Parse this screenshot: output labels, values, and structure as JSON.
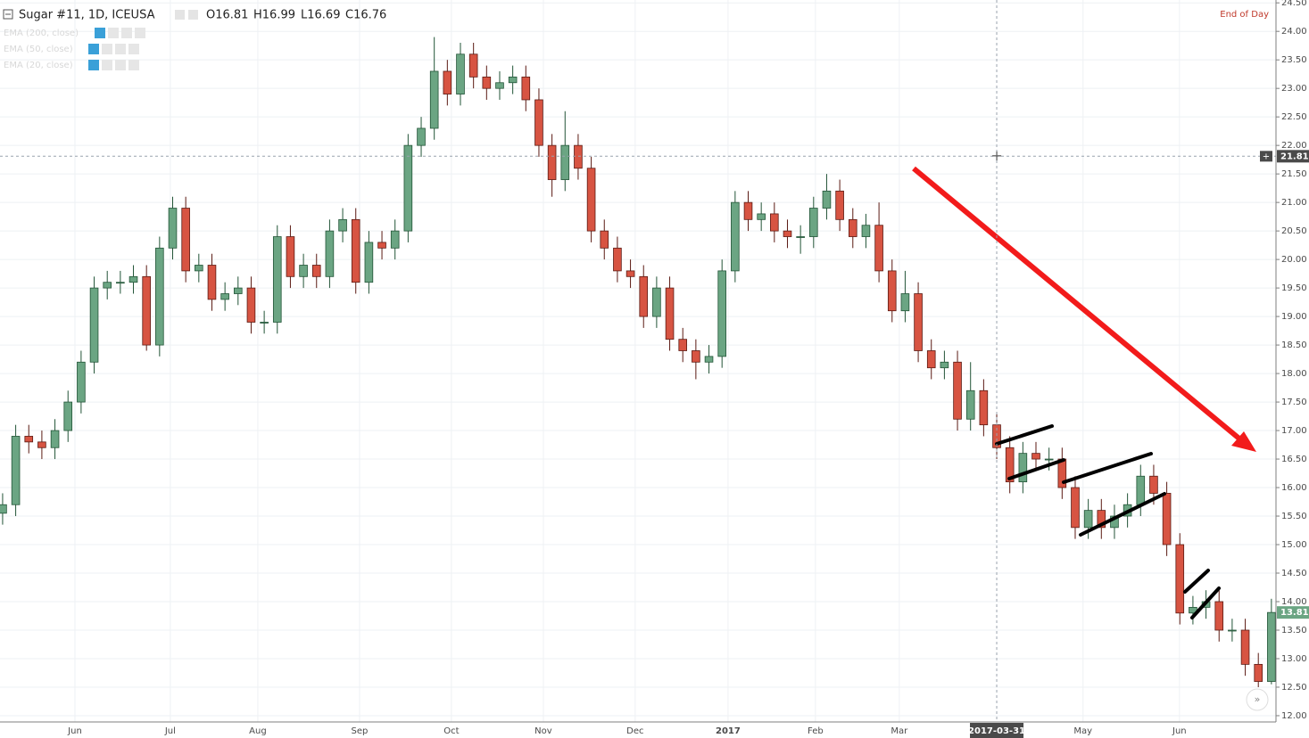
{
  "chart_data": {
    "type": "candlestick",
    "title": "Sugar #11, 1D, ICEUSA",
    "ohlc_labels": [
      "O16.81",
      "H16.99",
      "L16.69",
      "C16.76"
    ],
    "indicators": [
      "EMA (200, close)",
      "EMA (50, close)",
      "EMA (20, close)"
    ],
    "note": "End of Day",
    "up_color": "#6ba583",
    "up_border": "#225437",
    "down_color": "#d75442",
    "down_border": "#5b1a13",
    "open": [
      15.55,
      15.7,
      16.9,
      16.8,
      16.7,
      17.0,
      17.5,
      18.2,
      19.5,
      19.6,
      19.6,
      19.7,
      18.5,
      20.2,
      20.9,
      19.8,
      19.9,
      19.3,
      19.4,
      19.5,
      18.9,
      18.9,
      20.4,
      19.7,
      19.9,
      19.7,
      20.5,
      20.7,
      19.6,
      20.3,
      20.2,
      20.5,
      22.0,
      22.3,
      23.3,
      22.9,
      23.6,
      23.2,
      23.0,
      23.1,
      23.2,
      22.8,
      22.0,
      21.4,
      22.0,
      21.6,
      20.5,
      20.2,
      19.8,
      19.7,
      19.0,
      19.5,
      18.6,
      18.4,
      18.2,
      18.3,
      19.8,
      21.0,
      20.7,
      20.8,
      20.5,
      20.4,
      20.4,
      20.9,
      21.2,
      20.7,
      20.4,
      20.6,
      19.8,
      19.1,
      19.4,
      18.4,
      18.1,
      18.2,
      17.2,
      17.7,
      17.1,
      16.7,
      16.1,
      16.6,
      16.5,
      16.5,
      16.0,
      15.3,
      15.6,
      15.3,
      15.5,
      15.7,
      16.2,
      15.9,
      15.0,
      13.8,
      13.9,
      14.0,
      13.5,
      13.5,
      12.9,
      12.6
    ],
    "high": [
      15.9,
      17.1,
      17.1,
      17.0,
      17.2,
      17.7,
      18.4,
      19.7,
      19.8,
      19.8,
      19.9,
      19.9,
      20.4,
      21.1,
      21.1,
      20.1,
      20.1,
      19.6,
      19.7,
      19.7,
      19.1,
      20.6,
      20.6,
      20.1,
      20.1,
      20.7,
      20.9,
      20.9,
      20.5,
      20.5,
      20.7,
      22.2,
      22.5,
      23.9,
      23.5,
      23.8,
      23.8,
      23.4,
      23.3,
      23.4,
      23.4,
      23.0,
      22.2,
      22.6,
      22.2,
      21.8,
      20.7,
      20.4,
      20.0,
      19.9,
      19.7,
      19.7,
      18.8,
      18.6,
      18.5,
      20.0,
      21.2,
      21.2,
      21.0,
      21.0,
      20.7,
      20.6,
      21.1,
      21.5,
      21.4,
      20.9,
      20.8,
      21.0,
      20.0,
      19.8,
      19.6,
      18.6,
      18.4,
      18.4,
      18.2,
      17.9,
      17.3,
      16.9,
      16.8,
      16.8,
      16.7,
      16.7,
      16.2,
      15.8,
      15.8,
      15.7,
      15.9,
      16.4,
      16.4,
      16.1,
      15.2,
      14.1,
      14.2,
      14.2,
      13.7,
      13.7,
      13.1,
      14.05
    ],
    "low": [
      15.35,
      15.5,
      16.6,
      16.5,
      16.5,
      16.8,
      17.3,
      18.0,
      19.3,
      19.4,
      19.4,
      18.4,
      18.3,
      20.0,
      19.6,
      19.6,
      19.1,
      19.1,
      19.2,
      18.7,
      18.7,
      18.7,
      19.5,
      19.5,
      19.5,
      19.5,
      20.3,
      19.4,
      19.4,
      20.0,
      20.0,
      20.3,
      21.8,
      22.1,
      22.7,
      22.7,
      23.0,
      22.8,
      22.8,
      22.9,
      22.6,
      21.8,
      21.1,
      21.2,
      21.4,
      20.3,
      20.0,
      19.6,
      19.5,
      18.8,
      18.8,
      18.4,
      18.2,
      17.9,
      18.0,
      18.1,
      19.6,
      20.5,
      20.5,
      20.3,
      20.2,
      20.1,
      20.2,
      20.7,
      20.5,
      20.2,
      20.2,
      19.6,
      18.9,
      18.9,
      18.2,
      17.9,
      17.9,
      17.0,
      17.0,
      16.9,
      16.5,
      15.9,
      15.9,
      16.3,
      16.3,
      15.8,
      15.1,
      15.1,
      15.1,
      15.1,
      15.3,
      15.5,
      15.7,
      14.8,
      13.6,
      13.6,
      13.7,
      13.3,
      13.3,
      12.7,
      12.5,
      12.55
    ],
    "close": [
      15.7,
      16.9,
      16.8,
      16.7,
      17.0,
      17.5,
      18.2,
      19.5,
      19.6,
      19.6,
      19.7,
      18.5,
      20.2,
      20.9,
      19.8,
      19.9,
      19.3,
      19.4,
      19.5,
      18.9,
      18.9,
      20.4,
      19.7,
      19.9,
      19.7,
      20.5,
      20.7,
      19.6,
      20.3,
      20.2,
      20.5,
      22.0,
      22.3,
      23.3,
      22.9,
      23.6,
      23.2,
      23.0,
      23.1,
      23.2,
      22.8,
      22.0,
      21.4,
      22.0,
      21.6,
      20.5,
      20.2,
      19.8,
      19.7,
      19.0,
      19.5,
      18.6,
      18.4,
      18.2,
      18.3,
      19.8,
      21.0,
      20.7,
      20.8,
      20.5,
      20.4,
      20.4,
      20.9,
      21.2,
      20.7,
      20.4,
      20.6,
      19.8,
      19.1,
      19.4,
      18.4,
      18.1,
      18.2,
      17.2,
      17.7,
      17.1,
      16.7,
      16.1,
      16.6,
      16.5,
      16.5,
      16.0,
      15.3,
      15.6,
      15.3,
      15.5,
      15.7,
      16.2,
      15.9,
      15.0,
      13.8,
      13.9,
      14.0,
      13.5,
      13.5,
      12.9,
      12.6,
      13.81
    ],
    "xlim": [
      -0.2,
      97.35
    ],
    "xticks": [
      {
        "value": 5.53,
        "label": "Jun"
      },
      {
        "value": 12.82,
        "label": "Jul"
      },
      {
        "value": 19.51,
        "label": "Aug"
      },
      {
        "value": 27.29,
        "label": "Sep"
      },
      {
        "value": 34.31,
        "label": "Oct"
      },
      {
        "value": 41.34,
        "label": "Nov"
      },
      {
        "value": 48.36,
        "label": "Dec"
      },
      {
        "value": 55.46,
        "label": "2017"
      },
      {
        "value": 62.14,
        "label": "Feb"
      },
      {
        "value": 68.55,
        "label": "Mar"
      },
      {
        "value": 82.6,
        "label": "May"
      },
      {
        "value": 89.97,
        "label": "Jun"
      }
    ],
    "ylim": [
      11.89,
      24.55
    ],
    "yticks": [
      {
        "value": 12,
        "label": "12.00"
      },
      {
        "value": 12.5,
        "label": "12.50"
      },
      {
        "value": 13,
        "label": "13.00"
      },
      {
        "value": 13.5,
        "label": "13.50"
      },
      {
        "value": 14,
        "label": "14.00"
      },
      {
        "value": 14.5,
        "label": "14.50"
      },
      {
        "value": 15,
        "label": "15.00"
      },
      {
        "value": 15.5,
        "label": "15.50"
      },
      {
        "value": 16,
        "label": "16.00"
      },
      {
        "value": 16.5,
        "label": "16.50"
      },
      {
        "value": 17,
        "label": "17.00"
      },
      {
        "value": 17.5,
        "label": "17.50"
      },
      {
        "value": 18,
        "label": "18.00"
      },
      {
        "value": 18.5,
        "label": "18.50"
      },
      {
        "value": 19,
        "label": "19.00"
      },
      {
        "value": 19.5,
        "label": "19.50"
      },
      {
        "value": 20,
        "label": "20.00"
      },
      {
        "value": 20.5,
        "label": "20.50"
      },
      {
        "value": 21,
        "label": "21.00"
      },
      {
        "value": 21.5,
        "label": "21.50"
      },
      {
        "value": 22,
        "label": "22.00"
      },
      {
        "value": 22.5,
        "label": "22.50"
      },
      {
        "value": 23,
        "label": "23.00"
      },
      {
        "value": 23.5,
        "label": "23.50"
      },
      {
        "value": 24,
        "label": "24.00"
      },
      {
        "value": 24.5,
        "label": "24.50"
      }
    ],
    "grid": true,
    "crosshair": {
      "x": {
        "value": 76,
        "label": "2017-03-31"
      },
      "y": {
        "value": 21.81,
        "label": "21.81"
      }
    },
    "last_price": {
      "value": 13.81,
      "label": "13.81"
    }
  }
}
